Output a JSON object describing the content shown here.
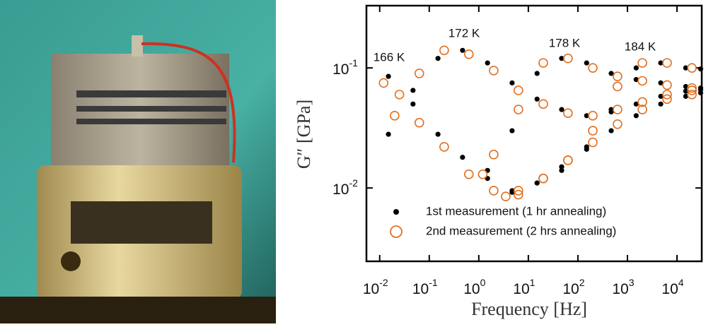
{
  "chart_data": {
    "type": "scatter",
    "xlabel": "Frequency [Hz]",
    "ylabel": "G″ [GPa]",
    "log_x": true,
    "log_y": true,
    "xlim": [
      0.0054,
      31600
    ],
    "ylim": [
      0.00245,
      0.33
    ],
    "xticks": [
      {
        "value": 0.01,
        "label": "10",
        "exponent": "-2"
      },
      {
        "value": 0.1,
        "label": "10",
        "exponent": "-1"
      },
      {
        "value": 1,
        "label": "10",
        "exponent": "0"
      },
      {
        "value": 10,
        "label": "10",
        "exponent": "1"
      },
      {
        "value": 100,
        "label": "10",
        "exponent": "2"
      },
      {
        "value": 1000,
        "label": "10",
        "exponent": "3"
      },
      {
        "value": 10000,
        "label": "10",
        "exponent": "4"
      }
    ],
    "yticks": [
      {
        "value": 0.01,
        "label": "10",
        "exponent": "-2"
      },
      {
        "value": 0.1,
        "label": "10",
        "exponent": "-1"
      }
    ],
    "annotations": [
      "166 K",
      "172 K",
      "178 K",
      "184 K"
    ],
    "legend": "lower left",
    "series": [
      {
        "name": "1st measurement (1 hr annealing)",
        "color": "#000000",
        "marker": "filled",
        "x": [
          0.015,
          0.047,
          0.15,
          0.47,
          1.5,
          4.7,
          15,
          47,
          150,
          470,
          1500,
          4700,
          15000,
          30000,
          0.015,
          0.047,
          0.15,
          0.47,
          1.5,
          4.7,
          15,
          47,
          150,
          470,
          1500,
          4700,
          15000,
          30000,
          1.5,
          4.7,
          15,
          47,
          150,
          470,
          1500,
          4700,
          15000,
          30000,
          4.7,
          15,
          47,
          150,
          470,
          1500,
          4700,
          15000,
          30000
        ],
        "values": [
          0.085,
          0.05,
          0.028,
          0.018,
          0.012,
          0.0092,
          0.011,
          0.015,
          0.021,
          0.03,
          0.04,
          0.05,
          0.058,
          0.062,
          0.028,
          0.065,
          0.12,
          0.14,
          0.11,
          0.075,
          0.055,
          0.045,
          0.04,
          0.043,
          0.05,
          0.058,
          0.064,
          0.066,
          0.014,
          0.03,
          0.09,
          0.12,
          0.11,
          0.09,
          0.08,
          0.075,
          0.07,
          0.068,
          0.0095,
          0.011,
          0.014,
          0.022,
          0.045,
          0.1,
          0.11,
          0.1,
          0.098
        ]
      },
      {
        "name": "2nd measurement (2 hrs annealing)",
        "color": "#e07020",
        "marker": "open",
        "x": [
          0.012,
          0.025,
          0.063,
          0.2,
          0.63,
          2,
          6.3,
          20,
          63,
          200,
          630,
          2000,
          6300,
          20000,
          0.02,
          0.063,
          0.2,
          0.63,
          2,
          6.3,
          20,
          63,
          200,
          630,
          2000,
          6300,
          20000,
          1.2,
          2,
          6.3,
          20,
          63,
          200,
          630,
          2000,
          6300,
          20000,
          3.5,
          6.3,
          20,
          63,
          200,
          630,
          2000,
          6300,
          20000
        ],
        "values": [
          0.075,
          0.06,
          0.035,
          0.022,
          0.013,
          0.0095,
          0.0088,
          0.012,
          0.017,
          0.024,
          0.034,
          0.045,
          0.055,
          0.06,
          0.04,
          0.09,
          0.14,
          0.13,
          0.095,
          0.065,
          0.05,
          0.042,
          0.04,
          0.045,
          0.052,
          0.06,
          0.065,
          0.013,
          0.019,
          0.045,
          0.11,
          0.12,
          0.1,
          0.085,
          0.078,
          0.072,
          0.068,
          0.0085,
          0.0095,
          0.012,
          0.017,
          0.03,
          0.07,
          0.11,
          0.11,
          0.1
        ]
      }
    ]
  }
}
